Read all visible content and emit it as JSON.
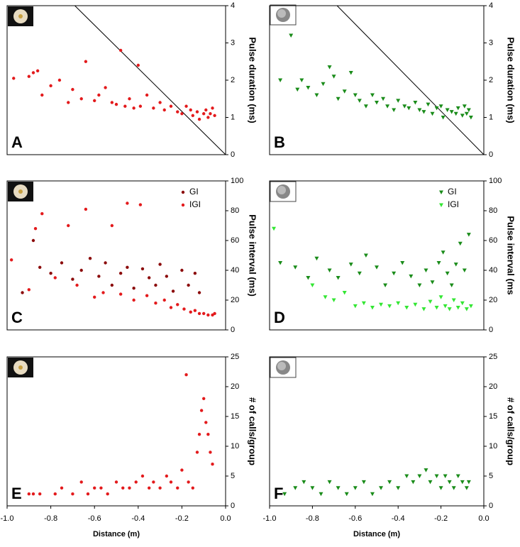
{
  "chart_data": [
    {
      "type": "scatter",
      "panel_label": "A",
      "ylabel": "Pulse duration (ms)",
      "xlim": [
        -1,
        0
      ],
      "ylim": [
        0,
        4
      ],
      "yticks": [
        0,
        1,
        2,
        3,
        4
      ],
      "marker": "circle",
      "line": {
        "x": [
          -0.69,
          0
        ],
        "y": [
          4,
          0
        ]
      },
      "series": [
        {
          "color": "#e31a1c",
          "x": [
            -0.97,
            -0.9,
            -0.88,
            -0.86,
            -0.84,
            -0.8,
            -0.76,
            -0.72,
            -0.7,
            -0.66,
            -0.64,
            -0.6,
            -0.58,
            -0.55,
            -0.52,
            -0.5,
            -0.48,
            -0.46,
            -0.44,
            -0.42,
            -0.4,
            -0.39,
            -0.36,
            -0.33,
            -0.3,
            -0.28,
            -0.25,
            -0.22,
            -0.2,
            -0.18,
            -0.16,
            -0.15,
            -0.13,
            -0.12,
            -0.1,
            -0.09,
            -0.08,
            -0.07,
            -0.06,
            -0.05
          ],
          "y": [
            2.05,
            2.1,
            2.2,
            2.25,
            1.6,
            1.85,
            2.0,
            1.4,
            1.75,
            1.5,
            2.5,
            1.45,
            1.6,
            1.8,
            1.4,
            1.35,
            2.8,
            1.3,
            1.5,
            1.25,
            2.4,
            1.3,
            1.6,
            1.25,
            1.4,
            1.2,
            1.3,
            1.15,
            1.1,
            1.3,
            1.2,
            1.05,
            1.15,
            0.95,
            1.1,
            1.2,
            1.0,
            1.1,
            1.25,
            1.05
          ]
        }
      ]
    },
    {
      "type": "scatter",
      "panel_label": "B",
      "ylabel": "Pulse duration (ms)",
      "xlim": [
        -1,
        0
      ],
      "ylim": [
        0,
        4
      ],
      "yticks": [
        0,
        1,
        2,
        3,
        4
      ],
      "marker": "triangle",
      "line": {
        "x": [
          -0.685,
          0
        ],
        "y": [
          4,
          0
        ]
      },
      "series": [
        {
          "color": "#1a8c1a",
          "x": [
            -0.95,
            -0.9,
            -0.87,
            -0.85,
            -0.82,
            -0.78,
            -0.75,
            -0.72,
            -0.7,
            -0.68,
            -0.65,
            -0.62,
            -0.6,
            -0.58,
            -0.55,
            -0.52,
            -0.5,
            -0.47,
            -0.45,
            -0.42,
            -0.4,
            -0.37,
            -0.35,
            -0.32,
            -0.3,
            -0.28,
            -0.26,
            -0.24,
            -0.22,
            -0.2,
            -0.19,
            -0.17,
            -0.15,
            -0.13,
            -0.12,
            -0.1,
            -0.09,
            -0.08,
            -0.07,
            -0.06
          ],
          "y": [
            2.0,
            3.2,
            1.75,
            2.0,
            1.8,
            1.6,
            1.9,
            2.35,
            2.1,
            1.5,
            1.7,
            2.2,
            1.6,
            1.45,
            1.3,
            1.6,
            1.4,
            1.5,
            1.3,
            1.2,
            1.45,
            1.3,
            1.25,
            1.4,
            1.2,
            1.15,
            1.35,
            1.1,
            1.25,
            1.3,
            1.0,
            1.2,
            1.15,
            1.1,
            1.25,
            1.05,
            1.3,
            1.1,
            1.2,
            1.0
          ]
        }
      ]
    },
    {
      "type": "scatter",
      "panel_label": "C",
      "ylabel": "Pulse interval (ms)",
      "xlim": [
        -1,
        0
      ],
      "ylim": [
        0,
        100
      ],
      "yticks": [
        0,
        20,
        40,
        60,
        80,
        100
      ],
      "marker": "circle",
      "legend": "upper right",
      "series": [
        {
          "name": "GI",
          "color": "#8b0a0a",
          "x": [
            -0.93,
            -0.88,
            -0.85,
            -0.8,
            -0.75,
            -0.7,
            -0.66,
            -0.62,
            -0.58,
            -0.55,
            -0.52,
            -0.48,
            -0.45,
            -0.42,
            -0.38,
            -0.35,
            -0.32,
            -0.3,
            -0.27,
            -0.24,
            -0.2,
            -0.17,
            -0.14,
            -0.12
          ],
          "y": [
            25,
            60,
            42,
            38,
            45,
            34,
            40,
            48,
            36,
            45,
            30,
            38,
            42,
            28,
            41,
            35,
            30,
            44,
            36,
            26,
            40,
            30,
            38,
            25
          ]
        },
        {
          "name": "IGI",
          "color": "#e31a1c",
          "x": [
            -0.98,
            -0.9,
            -0.87,
            -0.84,
            -0.78,
            -0.72,
            -0.68,
            -0.64,
            -0.6,
            -0.56,
            -0.52,
            -0.48,
            -0.45,
            -0.42,
            -0.39,
            -0.36,
            -0.32,
            -0.28,
            -0.25,
            -0.22,
            -0.19,
            -0.16,
            -0.14,
            -0.12,
            -0.1,
            -0.08,
            -0.06,
            -0.05
          ],
          "y": [
            47,
            27,
            68,
            78,
            35,
            70,
            30,
            81,
            22,
            25,
            70,
            24,
            85,
            20,
            84,
            23,
            18,
            20,
            15,
            17,
            14,
            12,
            13,
            11,
            11,
            10,
            10,
            11
          ]
        }
      ]
    },
    {
      "type": "scatter",
      "panel_label": "D",
      "ylabel": "Pulse interval (ms",
      "xlim": [
        -1,
        0
      ],
      "ylim": [
        0,
        100
      ],
      "yticks": [
        0,
        20,
        40,
        60,
        80,
        100
      ],
      "marker": "triangle",
      "legend": "upper right",
      "series": [
        {
          "name": "GI",
          "color": "#1a8c1a",
          "x": [
            -0.95,
            -0.88,
            -0.82,
            -0.78,
            -0.72,
            -0.68,
            -0.62,
            -0.58,
            -0.55,
            -0.5,
            -0.46,
            -0.42,
            -0.38,
            -0.34,
            -0.3,
            -0.27,
            -0.24,
            -0.21,
            -0.19,
            -0.17,
            -0.15,
            -0.13,
            -0.11,
            -0.09,
            -0.07
          ],
          "y": [
            45,
            42,
            35,
            48,
            40,
            35,
            44,
            38,
            50,
            42,
            30,
            38,
            45,
            36,
            30,
            40,
            32,
            45,
            52,
            38,
            30,
            44,
            58,
            40,
            64
          ]
        },
        {
          "name": "IGI",
          "color": "#33e633",
          "x": [
            -0.98,
            -0.8,
            -0.74,
            -0.7,
            -0.65,
            -0.6,
            -0.56,
            -0.52,
            -0.48,
            -0.44,
            -0.4,
            -0.36,
            -0.32,
            -0.28,
            -0.25,
            -0.22,
            -0.2,
            -0.18,
            -0.16,
            -0.14,
            -0.12,
            -0.1,
            -0.08,
            -0.06
          ],
          "y": [
            68,
            30,
            22,
            20,
            25,
            16,
            18,
            15,
            17,
            16,
            18,
            15,
            17,
            14,
            19,
            15,
            22,
            16,
            14,
            20,
            15,
            18,
            14,
            16
          ]
        }
      ]
    },
    {
      "type": "scatter",
      "panel_label": "E",
      "ylabel": "# of calls/group",
      "xlabel": "Distance (m)",
      "xlim": [
        -1,
        0
      ],
      "ylim": [
        0,
        25
      ],
      "yticks": [
        0,
        5,
        10,
        15,
        20,
        25
      ],
      "xticks": [
        {
          "value": -1,
          "label": "-1.0"
        },
        -0.8,
        -0.6,
        -0.4,
        -0.2,
        {
          "value": 0,
          "label": "0.0"
        }
      ],
      "marker": "circle",
      "series": [
        {
          "color": "#e31a1c",
          "x": [
            -0.9,
            -0.88,
            -0.85,
            -0.78,
            -0.75,
            -0.7,
            -0.66,
            -0.63,
            -0.6,
            -0.57,
            -0.54,
            -0.5,
            -0.47,
            -0.44,
            -0.41,
            -0.38,
            -0.35,
            -0.33,
            -0.3,
            -0.27,
            -0.25,
            -0.22,
            -0.2,
            -0.18,
            -0.17,
            -0.15,
            -0.13,
            -0.12,
            -0.11,
            -0.1,
            -0.09,
            -0.08,
            -0.07,
            -0.06
          ],
          "y": [
            2,
            2,
            2,
            2,
            3,
            2,
            4,
            2,
            3,
            3,
            2,
            4,
            3,
            3,
            4,
            5,
            3,
            4,
            3,
            5,
            4,
            3,
            6,
            22,
            4,
            3,
            9,
            12,
            16,
            18,
            14,
            12,
            9,
            7
          ]
        }
      ]
    },
    {
      "type": "scatter",
      "panel_label": "F",
      "ylabel": "# of calls/group",
      "xlabel": "Distance (m)",
      "xlim": [
        -1,
        0
      ],
      "ylim": [
        0,
        25
      ],
      "yticks": [
        0,
        5,
        10,
        15,
        20,
        25
      ],
      "xticks": [
        {
          "value": -1,
          "label": "-1.0"
        },
        -0.8,
        -0.6,
        -0.4,
        -0.2,
        {
          "value": 0,
          "label": "0.0"
        }
      ],
      "marker": "triangle",
      "series": [
        {
          "color": "#1a8c1a",
          "x": [
            -0.93,
            -0.88,
            -0.84,
            -0.8,
            -0.76,
            -0.72,
            -0.68,
            -0.64,
            -0.6,
            -0.56,
            -0.52,
            -0.48,
            -0.44,
            -0.4,
            -0.36,
            -0.33,
            -0.3,
            -0.27,
            -0.25,
            -0.22,
            -0.2,
            -0.18,
            -0.16,
            -0.14,
            -0.12,
            -0.1,
            -0.08,
            -0.07
          ],
          "y": [
            2,
            3,
            4,
            3,
            2,
            4,
            3,
            2,
            3,
            4,
            2,
            3,
            4,
            3,
            5,
            4,
            5,
            6,
            4,
            5,
            3,
            5,
            4,
            3,
            5,
            4,
            3,
            4
          ]
        }
      ]
    }
  ]
}
